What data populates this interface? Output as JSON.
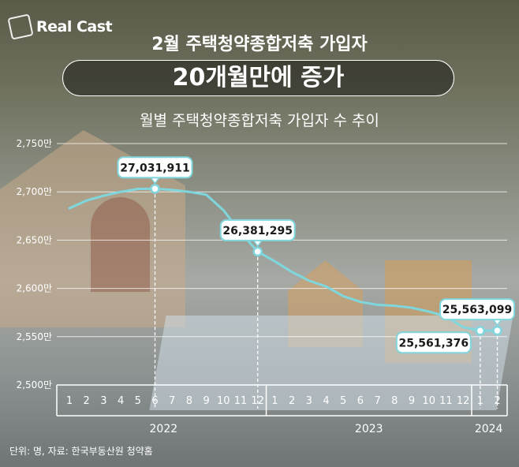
{
  "brand": {
    "logo_text": "Real Cast"
  },
  "header": {
    "title": "2월 주택청약종합저축 가입자",
    "headline": "20개월만에 증가",
    "subtitle": "월별 주택청약종합저축 가입자 수 추이"
  },
  "footer": {
    "source": "단위: 명, 자료: 한국부동산원 청약홈"
  },
  "colors": {
    "line": "#7fd6dd",
    "callout_border": "#7fd6dd",
    "text": "#ffffff"
  },
  "chart_data": {
    "type": "line",
    "title": "월별 주택청약종합저축 가입자 수 추이",
    "xlabel": "",
    "ylabel": "",
    "grid": true,
    "ylim": [
      25000000,
      27500000
    ],
    "y_ticks": [
      {
        "value": 27500000,
        "label": "2,750만"
      },
      {
        "value": 27000000,
        "label": "2,700만"
      },
      {
        "value": 26500000,
        "label": "2,650만"
      },
      {
        "value": 26000000,
        "label": "2,600만"
      },
      {
        "value": 25500000,
        "label": "2,550만"
      },
      {
        "value": 25000000,
        "label": "2,500만"
      }
    ],
    "x_tick_labels": [
      "1",
      "2",
      "3",
      "4",
      "5",
      "6",
      "7",
      "8",
      "9",
      "10",
      "11",
      "12",
      "1",
      "2",
      "3",
      "4",
      "5",
      "6",
      "7",
      "8",
      "9",
      "10",
      "11",
      "12",
      "1",
      "2"
    ],
    "year_groups": [
      {
        "label": "2022",
        "start": 0,
        "end": 11
      },
      {
        "label": "2023",
        "start": 12,
        "end": 23
      },
      {
        "label": "2024",
        "start": 24,
        "end": 25
      }
    ],
    "series": [
      {
        "values": [
          26830000,
          26910000,
          26960000,
          27000000,
          27030000,
          27031911,
          27020000,
          27000000,
          26970000,
          26810000,
          26580000,
          26381295,
          26280000,
          26170000,
          26080000,
          26020000,
          25920000,
          25860000,
          25830000,
          25820000,
          25800000,
          25760000,
          25710000,
          25600000,
          25561376,
          25563099
        ]
      }
    ],
    "annotations": [
      {
        "index": 5,
        "label": "27,031,911",
        "position": "above"
      },
      {
        "index": 11,
        "label": "26,381,295",
        "position": "above"
      },
      {
        "index": 24,
        "label": "25,561,376",
        "position": "below-left"
      },
      {
        "index": 25,
        "label": "25,563,099",
        "position": "above"
      }
    ]
  }
}
